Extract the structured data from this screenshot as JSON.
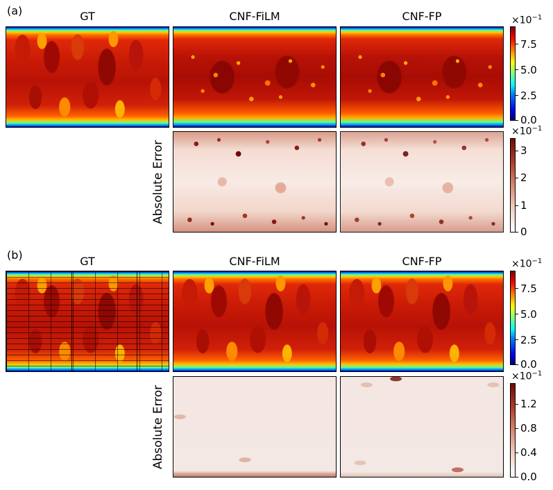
{
  "panels": [
    {
      "label": "(a)",
      "columns": [
        "GT",
        "CNF-FiLM",
        "CNF-FP"
      ],
      "error_label": "Absolute Error",
      "field_colorbar": {
        "exponent_base": "×10",
        "exponent_power": "−1",
        "ticks": [
          "7.5",
          "5.0",
          "2.5",
          "0.0"
        ],
        "colormap": "jet"
      },
      "error_colorbar": {
        "exponent_base": "×10",
        "exponent_power": "−1",
        "ticks": [
          "3",
          "2",
          "1",
          "0"
        ],
        "colormap": "white-to-darkred"
      }
    },
    {
      "label": "(b)",
      "columns": [
        "GT",
        "CNF-FiLM",
        "CNF-FP"
      ],
      "error_label": "Absolute Error",
      "field_colorbar": {
        "exponent_base": "×10",
        "exponent_power": "−1",
        "ticks": [
          "7.5",
          "5.0",
          "2.5",
          "0.0"
        ],
        "colormap": "jet"
      },
      "error_colorbar": {
        "exponent_base": "×10",
        "exponent_power": "−1",
        "ticks": [
          "1.2",
          "0.8",
          "0.4",
          "0.0"
        ],
        "colormap": "white-to-darkred"
      }
    }
  ]
}
